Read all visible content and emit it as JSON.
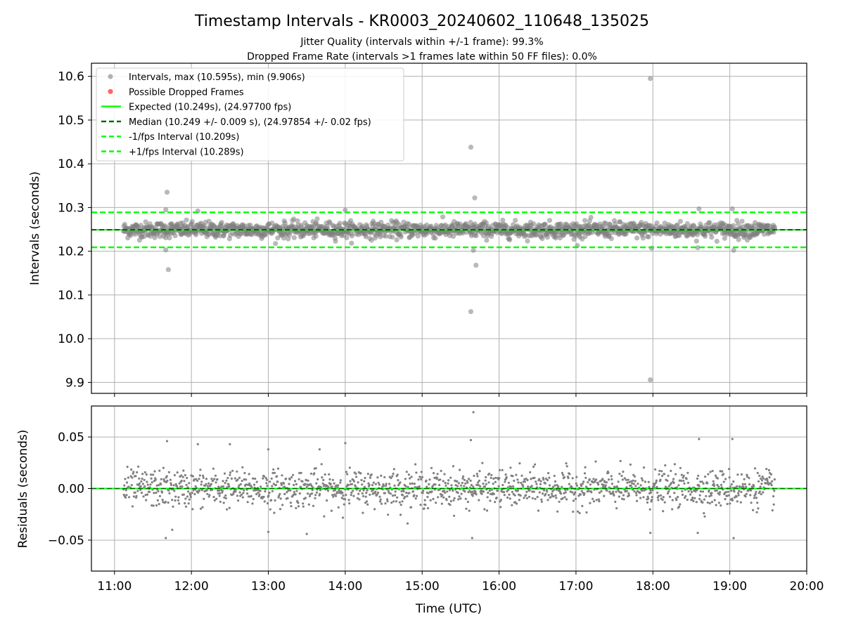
{
  "header": {
    "title": "Timestamp Intervals - KR0003_20240602_110648_135025",
    "subtitle1": "Jitter Quality (intervals within +/-1 frame): 99.3%",
    "subtitle2": "Dropped Frame Rate (intervals >1 frames late within 50 FF files): 0.0%"
  },
  "chart_data": [
    {
      "type": "scatter",
      "panel": "top",
      "ylabel": "Intervals (seconds)",
      "xlabel": "",
      "xlim": [
        "10:42",
        "20:00"
      ],
      "ylim": [
        9.875,
        10.63
      ],
      "yticks": [
        "9.9",
        "10.0",
        "10.1",
        "10.2",
        "10.3",
        "10.4",
        "10.5",
        "10.6"
      ],
      "grid": true,
      "legend_position": "upper-left",
      "legend": [
        {
          "label": "Intervals, max (10.595s), min (9.906s)",
          "style": "marker",
          "color": "#808080"
        },
        {
          "label": "Possible Dropped Frames",
          "style": "marker",
          "color": "#ff3333"
        },
        {
          "label": "Expected (10.249s), (24.97700 fps)",
          "style": "solid",
          "color": "#00ff00"
        },
        {
          "label": "Median (10.249 +/- 0.009 s), (24.97854 +/- 0.02 fps)",
          "style": "dashed",
          "color": "#006400"
        },
        {
          "label": "-1/fps Interval (10.209s)",
          "style": "dashed",
          "color": "#00ff00"
        },
        {
          "label": "+1/fps Interval (10.289s)",
          "style": "dashed",
          "color": "#00ff00"
        }
      ],
      "reference_lines": {
        "expected": 10.249,
        "median": 10.249,
        "minus_1fps": 10.209,
        "plus_1fps": 10.289
      },
      "dense_band": {
        "x_start": "11:07",
        "x_end": "19:35",
        "center": 10.249,
        "spread": 0.009
      },
      "outliers": [
        {
          "x": "11:41",
          "y": 10.335
        },
        {
          "x": "11:42",
          "y": 10.158
        },
        {
          "x": "11:40",
          "y": 10.295
        },
        {
          "x": "11:40",
          "y": 10.203
        },
        {
          "x": "15:38",
          "y": 10.438
        },
        {
          "x": "15:41",
          "y": 10.322
        },
        {
          "x": "15:42",
          "y": 10.168
        },
        {
          "x": "15:38",
          "y": 10.062
        },
        {
          "x": "15:40",
          "y": 10.202
        },
        {
          "x": "17:58",
          "y": 10.595
        },
        {
          "x": "17:58",
          "y": 9.906
        },
        {
          "x": "17:59",
          "y": 10.207
        },
        {
          "x": "18:36",
          "y": 10.297
        },
        {
          "x": "19:02",
          "y": 10.297
        },
        {
          "x": "19:03",
          "y": 10.202
        },
        {
          "x": "14:00",
          "y": 10.294
        },
        {
          "x": "12:05",
          "y": 10.292
        },
        {
          "x": "18:35",
          "y": 10.208
        }
      ],
      "dropped_frames": []
    },
    {
      "type": "scatter",
      "panel": "bottom",
      "ylabel": "Residuals (seconds)",
      "xlabel": "Time (UTC)",
      "xlim": [
        "10:42",
        "20:00"
      ],
      "ylim": [
        -0.08,
        0.08
      ],
      "yticks": [
        "−0.05",
        "0.00",
        "0.05"
      ],
      "xticks": [
        "11:00",
        "12:00",
        "13:00",
        "14:00",
        "15:00",
        "16:00",
        "17:00",
        "18:00",
        "19:00",
        "20:00"
      ],
      "grid": true,
      "reference_lines": {
        "zero": 0.0
      },
      "dense_band": {
        "x_start": "11:07",
        "x_end": "19:35",
        "center": 0.0,
        "spread": 0.009
      },
      "outliers": [
        {
          "x": "15:40",
          "y": 0.074
        },
        {
          "x": "15:38",
          "y": 0.047
        },
        {
          "x": "11:41",
          "y": 0.046
        },
        {
          "x": "11:40",
          "y": -0.048
        },
        {
          "x": "15:39",
          "y": -0.048
        },
        {
          "x": "18:36",
          "y": 0.048
        },
        {
          "x": "19:02",
          "y": 0.048
        },
        {
          "x": "19:03",
          "y": -0.048
        },
        {
          "x": "17:58",
          "y": -0.043
        },
        {
          "x": "18:35",
          "y": -0.043
        },
        {
          "x": "14:00",
          "y": 0.044
        },
        {
          "x": "12:05",
          "y": 0.043
        },
        {
          "x": "12:30",
          "y": 0.043
        },
        {
          "x": "13:00",
          "y": 0.038
        },
        {
          "x": "13:40",
          "y": 0.038
        },
        {
          "x": "13:00",
          "y": -0.042
        },
        {
          "x": "13:30",
          "y": -0.044
        },
        {
          "x": "11:45",
          "y": -0.04
        }
      ]
    }
  ]
}
